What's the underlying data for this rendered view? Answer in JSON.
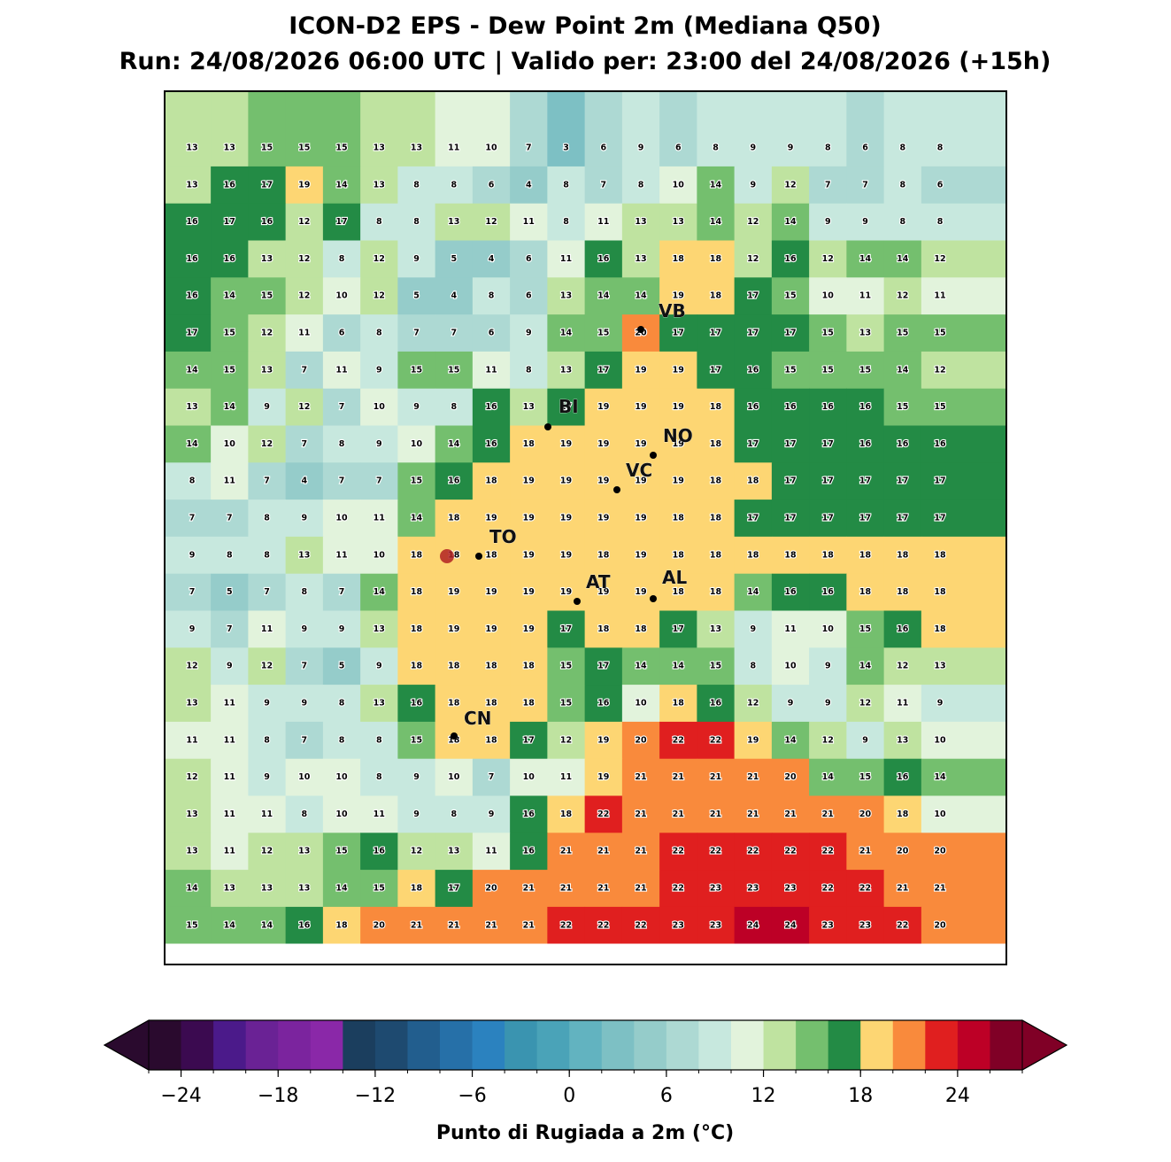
{
  "title": [
    "ICON-D2 EPS - Dew Point 2m (Mediana Q50)",
    "Run: 24/08/2026 06:00 UTC | Valido per: 23:00 del 24/08/2026 (+15h)"
  ],
  "grid": {
    "rows": [
      [
        13,
        13,
        15,
        15,
        15,
        13,
        13,
        11,
        10,
        7,
        3,
        6,
        9,
        6,
        8,
        9,
        9,
        8,
        6,
        8,
        8
      ],
      [
        13,
        16,
        17,
        19,
        14,
        13,
        8,
        8,
        6,
        4,
        8,
        7,
        8,
        10,
        14,
        9,
        12,
        7,
        7,
        8,
        6
      ],
      [
        16,
        17,
        16,
        12,
        17,
        8,
        8,
        13,
        12,
        11,
        8,
        11,
        13,
        13,
        14,
        12,
        14,
        9,
        9,
        8,
        8
      ],
      [
        16,
        16,
        13,
        12,
        8,
        12,
        9,
        5,
        4,
        6,
        11,
        16,
        13,
        18,
        18,
        12,
        16,
        12,
        14,
        14,
        12
      ],
      [
        16,
        14,
        15,
        12,
        10,
        12,
        5,
        4,
        8,
        6,
        13,
        14,
        14,
        19,
        18,
        17,
        15,
        10,
        11,
        12,
        11
      ],
      [
        17,
        15,
        12,
        11,
        6,
        8,
        7,
        7,
        6,
        9,
        14,
        15,
        20,
        17,
        17,
        17,
        17,
        15,
        13,
        15,
        15
      ],
      [
        14,
        15,
        13,
        7,
        11,
        9,
        15,
        15,
        11,
        8,
        13,
        17,
        19,
        19,
        17,
        16,
        15,
        15,
        15,
        14,
        12
      ],
      [
        13,
        14,
        9,
        12,
        7,
        10,
        9,
        8,
        16,
        13,
        17,
        19,
        19,
        19,
        18,
        16,
        16,
        16,
        16,
        15,
        15
      ],
      [
        14,
        10,
        12,
        7,
        8,
        9,
        10,
        14,
        16,
        18,
        19,
        19,
        19,
        19,
        18,
        17,
        17,
        17,
        16,
        16,
        16
      ],
      [
        8,
        11,
        7,
        4,
        7,
        7,
        15,
        16,
        18,
        19,
        19,
        19,
        19,
        19,
        18,
        18,
        17,
        17,
        17,
        17,
        17
      ],
      [
        7,
        7,
        8,
        9,
        10,
        11,
        14,
        18,
        19,
        19,
        19,
        19,
        19,
        18,
        18,
        17,
        17,
        17,
        17,
        17,
        17
      ],
      [
        9,
        8,
        8,
        13,
        11,
        10,
        18,
        18,
        18,
        19,
        19,
        18,
        19,
        18,
        18,
        18,
        18,
        18,
        18,
        18,
        18
      ],
      [
        7,
        5,
        7,
        8,
        7,
        14,
        18,
        19,
        19,
        19,
        19,
        19,
        19,
        18,
        18,
        14,
        16,
        16,
        18,
        18,
        18
      ],
      [
        9,
        7,
        11,
        9,
        9,
        13,
        18,
        19,
        19,
        19,
        17,
        18,
        18,
        17,
        13,
        9,
        11,
        10,
        15,
        16,
        18
      ],
      [
        12,
        9,
        12,
        7,
        5,
        9,
        18,
        18,
        18,
        18,
        15,
        17,
        14,
        14,
        15,
        8,
        10,
        9,
        14,
        12,
        13
      ],
      [
        13,
        11,
        9,
        9,
        8,
        13,
        16,
        18,
        18,
        18,
        15,
        16,
        10,
        18,
        16,
        12,
        9,
        9,
        12,
        11,
        9
      ],
      [
        11,
        11,
        8,
        7,
        8,
        8,
        15,
        18,
        18,
        17,
        12,
        19,
        20,
        22,
        22,
        19,
        14,
        12,
        9,
        13,
        10
      ],
      [
        12,
        11,
        9,
        10,
        10,
        8,
        9,
        10,
        7,
        10,
        11,
        19,
        21,
        21,
        21,
        21,
        20,
        14,
        15,
        16,
        14
      ],
      [
        13,
        11,
        11,
        8,
        10,
        11,
        9,
        8,
        9,
        16,
        18,
        22,
        21,
        21,
        21,
        21,
        21,
        21,
        20,
        18,
        10
      ],
      [
        13,
        11,
        12,
        13,
        15,
        16,
        12,
        13,
        11,
        16,
        21,
        21,
        21,
        22,
        22,
        22,
        22,
        22,
        21,
        20,
        20
      ],
      [
        14,
        13,
        13,
        13,
        14,
        15,
        18,
        17,
        20,
        21,
        21,
        21,
        21,
        22,
        23,
        23,
        23,
        22,
        22,
        21,
        21
      ],
      [
        15,
        14,
        14,
        16,
        18,
        20,
        21,
        21,
        21,
        21,
        22,
        22,
        22,
        23,
        23,
        24,
        24,
        23,
        23,
        22,
        20
      ]
    ]
  },
  "cities": [
    "VB",
    "BI",
    "NO",
    "VC",
    "TO",
    "AT",
    "AL",
    "CN"
  ],
  "colorbar": {
    "label": "Punto di Rugiada a 2m (°C)",
    "boundaries": [
      -26,
      -24,
      -22,
      -20,
      -18,
      -16,
      -14,
      -12,
      -10,
      -8,
      -6,
      -4,
      -2,
      0,
      2,
      4,
      6,
      8,
      10,
      12,
      14,
      16,
      18,
      20,
      22,
      24,
      26,
      28
    ],
    "colors": [
      "#2a0a2e",
      "#3b0a50",
      "#4b1a8a",
      "#6a2295",
      "#7b249e",
      "#8a28a8",
      "#1b3e5e",
      "#1e4a70",
      "#225e8e",
      "#2670a8",
      "#2b82bf",
      "#3a94b0",
      "#4aa3b8",
      "#62b3c0",
      "#7dc0c4",
      "#95ccca",
      "#add9d3",
      "#c7e8de",
      "#e2f3dc",
      "#bfe3a0",
      "#74bf6e",
      "#238b45",
      "#fdd673",
      "#f98a3c",
      "#e01f1f",
      "#bd0026",
      "#800026"
    ],
    "ticks": [
      {
        "value": -24,
        "label": "−24"
      },
      {
        "value": -18,
        "label": "−18"
      },
      {
        "value": -12,
        "label": "−12"
      },
      {
        "value": -6,
        "label": "−6"
      },
      0,
      6,
      12,
      18,
      24
    ]
  }
}
